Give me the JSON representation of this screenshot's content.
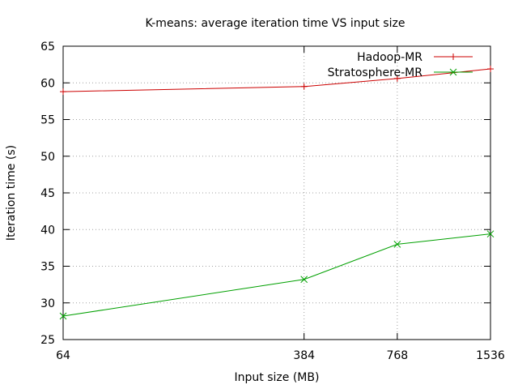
{
  "chart_data": {
    "type": "line",
    "title": "K-means: average iteration time VS input size",
    "xlabel": "Input size (MB)",
    "ylabel": "Iteration time (s)",
    "x_scale": "log",
    "x": [
      64,
      384,
      768,
      1536
    ],
    "x_ticks": [
      "64",
      "384",
      "768",
      "1536"
    ],
    "ylim": [
      25,
      65
    ],
    "y_ticks": [
      "25",
      "30",
      "35",
      "40",
      "45",
      "50",
      "55",
      "60",
      "65"
    ],
    "grid": true,
    "legend_position": "top-right",
    "series": [
      {
        "name": "Hadoop-MR",
        "color": "#cc0000",
        "marker": "plus",
        "values": [
          58.8,
          59.5,
          60.6,
          61.9
        ]
      },
      {
        "name": "Stratosphere-MR",
        "color": "#00a000",
        "marker": "x",
        "values": [
          28.2,
          33.2,
          38.0,
          39.4
        ]
      }
    ]
  }
}
